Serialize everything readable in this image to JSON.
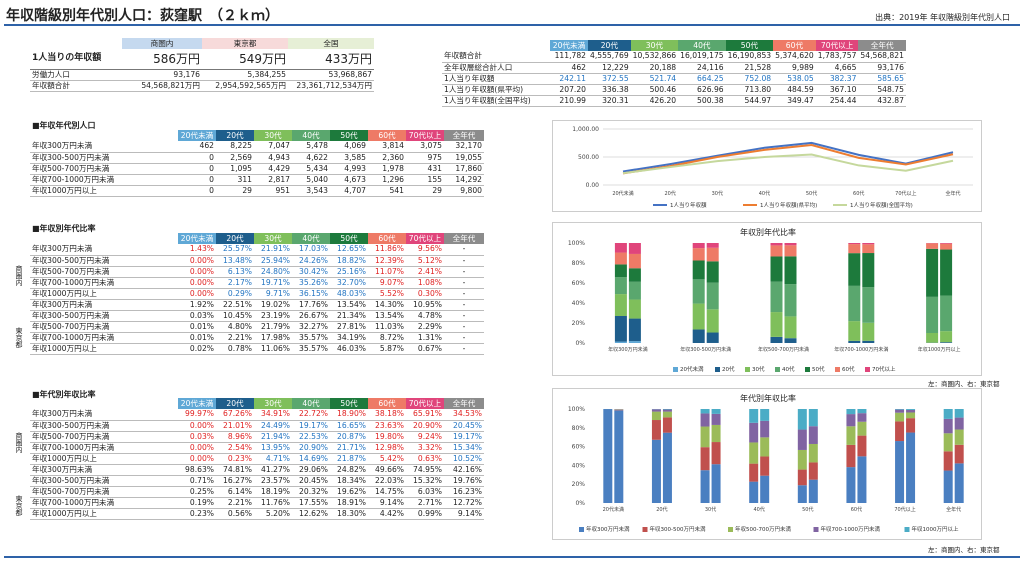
{
  "title": "年収階級別年代別人口：荻窪駅　（２ｋｍ）",
  "source": "出典：2019年 年収階級別年代別人口",
  "colors": {
    "c20u": "#5fa8d6",
    "c20": "#1e5e8c",
    "c30": "#7fbf5b",
    "c40": "#5aa76e",
    "c50": "#1d7a3c",
    "c60": "#ee7a66",
    "c70": "#e0457b",
    "call": "#8c8c8c"
  },
  "summary": {
    "headers": [
      "商圏内",
      "東京都",
      "全国"
    ],
    "income_label": "1人当りの年収額",
    "income": [
      "586万円",
      "549万円",
      "433万円"
    ],
    "rows": [
      {
        "label": "労働力人口",
        "values": [
          "93,176",
          "5,384,255",
          "53,968,867"
        ]
      },
      {
        "label": "年収額合計",
        "values": [
          "54,568,821万円",
          "2,954,592,565万円",
          "23,361,712,534万円"
        ]
      }
    ]
  },
  "ages": [
    "20代未満",
    "20代",
    "30代",
    "40代",
    "50代",
    "60代",
    "70代以上",
    "全年代"
  ],
  "right_table": {
    "rows": [
      {
        "label": "年収額合計",
        "values": [
          "111,782",
          "4,555,769",
          "10,532,866",
          "16,019,175",
          "16,190,853",
          "5,374,620",
          "1,783,757",
          "54,568,821"
        ]
      },
      {
        "label": "全年収層総合計人口",
        "values": [
          "462",
          "12,229",
          "20,188",
          "24,116",
          "21,528",
          "9,989",
          "4,665",
          "93,176"
        ]
      },
      {
        "label": "1人当り年収額",
        "values": [
          "242.11",
          "372.55",
          "521.74",
          "664.25",
          "752.08",
          "538.05",
          "382.37",
          "585.65"
        ]
      },
      {
        "label": "1人当り年収額(県平均)",
        "values": [
          "207.20",
          "336.38",
          "500.46",
          "626.96",
          "713.80",
          "484.59",
          "367.10",
          "548.75"
        ]
      },
      {
        "label": "1人当り年収額(全国平均)",
        "values": [
          "210.99",
          "320.31",
          "426.20",
          "500.38",
          "544.97",
          "349.47",
          "254.44",
          "432.87"
        ]
      }
    ]
  },
  "sec1": {
    "title": "■年収年代別人口",
    "rows": [
      {
        "label": "年収300万円未満",
        "values": [
          "462",
          "8,225",
          "7,047",
          "5,478",
          "4,069",
          "3,814",
          "3,075",
          "32,170"
        ]
      },
      {
        "label": "年収300-500万円未満",
        "values": [
          "0",
          "2,569",
          "4,943",
          "4,622",
          "3,585",
          "2,360",
          "975",
          "19,055"
        ]
      },
      {
        "label": "年収500-700万円未満",
        "values": [
          "0",
          "1,095",
          "4,429",
          "5,434",
          "4,993",
          "1,978",
          "431",
          "17,860"
        ]
      },
      {
        "label": "年収700-1000万円未満",
        "values": [
          "0",
          "311",
          "2,817",
          "5,040",
          "4,673",
          "1,296",
          "155",
          "14,292"
        ]
      },
      {
        "label": "年収1000万円以上",
        "values": [
          "0",
          "29",
          "951",
          "3,543",
          "4,707",
          "541",
          "29",
          "9,800"
        ]
      }
    ]
  },
  "sec2": {
    "title": "■年収別年代比率",
    "group_a": "商圏内",
    "group_b": "東京都",
    "rows_a": [
      {
        "label": "年収300万円未満",
        "values": [
          "1.43%",
          "25.57%",
          "21.91%",
          "17.03%",
          "12.65%",
          "11.86%",
          "9.56%",
          "-"
        ]
      },
      {
        "label": "年収300-500万円未満",
        "values": [
          "0.00%",
          "13.48%",
          "25.94%",
          "24.26%",
          "18.82%",
          "12.39%",
          "5.12%",
          "-"
        ]
      },
      {
        "label": "年収500-700万円未満",
        "values": [
          "0.00%",
          "6.13%",
          "24.80%",
          "30.42%",
          "25.16%",
          "11.07%",
          "2.41%",
          "-"
        ]
      },
      {
        "label": "年収700-1000万円未満",
        "values": [
          "0.00%",
          "2.17%",
          "19.71%",
          "35.26%",
          "32.70%",
          "9.07%",
          "1.08%",
          "-"
        ]
      },
      {
        "label": "年収1000万円以上",
        "values": [
          "0.00%",
          "0.29%",
          "9.71%",
          "36.15%",
          "48.03%",
          "5.52%",
          "0.30%",
          "-"
        ]
      }
    ],
    "rows_b": [
      {
        "label": "年収300万円未満",
        "values": [
          "1.92%",
          "22.51%",
          "19.02%",
          "17.76%",
          "13.54%",
          "14.30%",
          "10.95%",
          "-"
        ]
      },
      {
        "label": "年収300-500万円未満",
        "values": [
          "0.03%",
          "10.45%",
          "23.19%",
          "26.67%",
          "21.34%",
          "13.54%",
          "4.78%",
          "-"
        ]
      },
      {
        "label": "年収500-700万円未満",
        "values": [
          "0.01%",
          "4.80%",
          "21.79%",
          "32.27%",
          "27.81%",
          "11.03%",
          "2.29%",
          "-"
        ]
      },
      {
        "label": "年収700-1000万円未満",
        "values": [
          "0.01%",
          "2.21%",
          "17.98%",
          "35.57%",
          "34.19%",
          "8.72%",
          "1.31%",
          "-"
        ]
      },
      {
        "label": "年収1000万円以上",
        "values": [
          "0.02%",
          "0.78%",
          "11.06%",
          "35.57%",
          "46.03%",
          "5.87%",
          "0.67%",
          "-"
        ]
      }
    ]
  },
  "sec3": {
    "title": "■年代別年収比率",
    "group_a": "商圏内",
    "group_b": "東京都",
    "rows_a": [
      {
        "label": "年収300万円未満",
        "values": [
          "99.97%",
          "67.26%",
          "34.91%",
          "22.72%",
          "18.90%",
          "38.18%",
          "65.91%",
          "34.53%"
        ]
      },
      {
        "label": "年収300-500万円未満",
        "values": [
          "0.00%",
          "21.01%",
          "24.49%",
          "19.17%",
          "16.65%",
          "23.63%",
          "20.90%",
          "20.45%"
        ]
      },
      {
        "label": "年収500-700万円未満",
        "values": [
          "0.03%",
          "8.96%",
          "21.94%",
          "22.53%",
          "20.87%",
          "19.80%",
          "9.24%",
          "19.17%"
        ]
      },
      {
        "label": "年収700-1000万円未満",
        "values": [
          "0.00%",
          "2.54%",
          "13.95%",
          "20.90%",
          "21.71%",
          "12.98%",
          "3.32%",
          "15.34%"
        ]
      },
      {
        "label": "年収1000万円以上",
        "values": [
          "0.00%",
          "0.23%",
          "4.71%",
          "14.69%",
          "21.87%",
          "5.42%",
          "0.63%",
          "10.52%"
        ]
      }
    ],
    "rows_b": [
      {
        "label": "年収300万円未満",
        "values": [
          "98.63%",
          "74.81%",
          "41.27%",
          "29.06%",
          "24.82%",
          "49.66%",
          "74.95%",
          "42.16%"
        ]
      },
      {
        "label": "年収300-500万円未満",
        "values": [
          "0.71%",
          "16.27%",
          "23.57%",
          "20.45%",
          "18.34%",
          "22.03%",
          "15.32%",
          "19.76%"
        ]
      },
      {
        "label": "年収500-700万円未満",
        "values": [
          "0.25%",
          "6.14%",
          "18.19%",
          "20.32%",
          "19.62%",
          "14.75%",
          "6.03%",
          "16.23%"
        ]
      },
      {
        "label": "年収700-1000万円未満",
        "values": [
          "0.19%",
          "2.21%",
          "11.76%",
          "17.55%",
          "18.91%",
          "9.14%",
          "2.71%",
          "12.72%"
        ]
      },
      {
        "label": "年収1000万円以上",
        "values": [
          "0.23%",
          "0.56%",
          "5.20%",
          "12.62%",
          "18.30%",
          "4.42%",
          "0.99%",
          "9.14%"
        ]
      }
    ]
  },
  "chart_data": [
    {
      "type": "line",
      "title": "",
      "categories": [
        "20代未満",
        "20代",
        "30代",
        "40代",
        "50代",
        "60代",
        "70代以上",
        "全年代"
      ],
      "ylim": [
        0,
        1000
      ],
      "yticks": [
        "1,000.00",
        "500.00",
        "0.00"
      ],
      "series": [
        {
          "name": "1人当り年収額",
          "color": "#4472c4",
          "values": [
            242.11,
            372.55,
            521.74,
            664.25,
            752.08,
            538.05,
            382.37,
            585.65
          ]
        },
        {
          "name": "1人当り年収額(県平均)",
          "color": "#ed7d31",
          "values": [
            207.2,
            336.38,
            500.46,
            626.96,
            713.8,
            484.59,
            367.1,
            548.75
          ]
        },
        {
          "name": "1人当り年収額(全国平均)",
          "color": "#c5d89c",
          "values": [
            210.99,
            320.31,
            426.2,
            500.38,
            544.97,
            349.47,
            254.44,
            432.87
          ]
        }
      ]
    },
    {
      "type": "bar",
      "title": "年収別年代比率",
      "categories": [
        "年収300万円未満",
        "年収300-500万円未満",
        "年収500-700万円未満",
        "年収700-1000万円未満",
        "年収1000万円以上"
      ],
      "yticks": [
        "100%",
        "80%",
        "60%",
        "40%",
        "20%",
        "0%"
      ],
      "note": "左：商圏内、右：東京都",
      "series": [
        {
          "name": "20代未満",
          "color": "#5fa8d6",
          "a": [
            1.43,
            0,
            0,
            0,
            0
          ],
          "b": [
            1.92,
            0.03,
            0.01,
            0.01,
            0.02
          ]
        },
        {
          "name": "20代",
          "color": "#1e5e8c",
          "a": [
            25.57,
            13.48,
            6.13,
            2.17,
            0.29
          ],
          "b": [
            22.51,
            10.45,
            4.8,
            2.21,
            0.78
          ]
        },
        {
          "name": "30代",
          "color": "#7fbf5b",
          "a": [
            21.91,
            25.94,
            24.8,
            19.71,
            9.71
          ],
          "b": [
            19.02,
            23.19,
            21.79,
            17.98,
            11.06
          ]
        },
        {
          "name": "40代",
          "color": "#5aa76e",
          "a": [
            17.03,
            24.26,
            30.42,
            35.26,
            36.15
          ],
          "b": [
            17.76,
            26.67,
            32.27,
            35.57,
            35.57
          ]
        },
        {
          "name": "50代",
          "color": "#1d7a3c",
          "a": [
            12.65,
            18.82,
            25.16,
            32.7,
            48.03
          ],
          "b": [
            13.54,
            21.34,
            27.81,
            34.19,
            46.03
          ]
        },
        {
          "name": "60代",
          "color": "#ee7a66",
          "a": [
            11.86,
            12.39,
            11.07,
            9.07,
            5.52
          ],
          "b": [
            14.3,
            13.54,
            11.03,
            8.72,
            5.87
          ]
        },
        {
          "name": "70代以上",
          "color": "#e0457b",
          "a": [
            9.56,
            5.12,
            2.41,
            1.08,
            0.3
          ],
          "b": [
            10.95,
            4.78,
            2.29,
            1.31,
            0.67
          ]
        }
      ]
    },
    {
      "type": "bar",
      "title": "年代別年収比率",
      "categories": [
        "20代未満",
        "20代",
        "30代",
        "40代",
        "50代",
        "60代",
        "70代以上",
        "全年代"
      ],
      "yticks": [
        "100%",
        "80%",
        "60%",
        "40%",
        "20%",
        "0%"
      ],
      "note": "左：商圏内、右：東京都",
      "series": [
        {
          "name": "年収300万円未満",
          "color": "#4a7fc1",
          "a": [
            99.97,
            67.26,
            34.91,
            22.72,
            18.9,
            38.18,
            65.91,
            34.53
          ],
          "b": [
            98.63,
            74.81,
            41.27,
            29.06,
            24.82,
            49.66,
            74.95,
            42.16
          ]
        },
        {
          "name": "年収300-500万円未満",
          "color": "#c0504d",
          "a": [
            0,
            21.01,
            24.49,
            19.17,
            16.65,
            23.63,
            20.9,
            20.45
          ],
          "b": [
            0.71,
            16.27,
            23.57,
            20.45,
            18.34,
            22.03,
            15.32,
            19.76
          ]
        },
        {
          "name": "年収500-700万円未満",
          "color": "#9bbb59",
          "a": [
            0.03,
            8.96,
            21.94,
            22.53,
            20.87,
            19.8,
            9.24,
            19.17
          ],
          "b": [
            0.25,
            6.14,
            18.19,
            20.32,
            19.62,
            14.75,
            6.03,
            16.23
          ]
        },
        {
          "name": "年収700-1000万円未満",
          "color": "#8064a2",
          "a": [
            0,
            2.54,
            13.95,
            20.9,
            21.71,
            12.98,
            3.32,
            15.34
          ],
          "b": [
            0.19,
            2.21,
            11.76,
            17.55,
            18.91,
            9.14,
            2.71,
            12.72
          ]
        },
        {
          "name": "年収1000万円以上",
          "color": "#4bacc6",
          "a": [
            0,
            0.23,
            4.71,
            14.69,
            21.87,
            5.42,
            0.63,
            10.52
          ],
          "b": [
            0.23,
            0.56,
            5.2,
            12.62,
            18.3,
            4.42,
            0.99,
            9.14
          ]
        }
      ]
    }
  ]
}
